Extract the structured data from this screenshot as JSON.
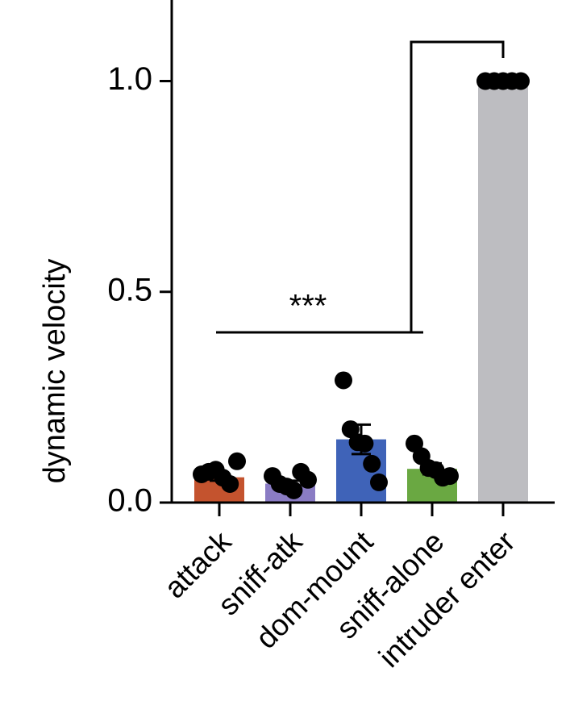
{
  "chart_data": {
    "type": "bar",
    "y_label": "dynamic velocity",
    "annotation": "***",
    "categories": [
      "attack",
      "sniff-atk",
      "dom-mount",
      "sniff-alone",
      "intruder enter"
    ],
    "values": [
      0.06,
      0.045,
      0.15,
      0.08,
      1.0
    ],
    "errors": [
      0.008,
      0.007,
      0.035,
      0.013,
      0
    ],
    "points": [
      [
        0.067,
        0.073,
        0.078,
        0.059,
        0.044,
        0.098
      ],
      [
        0.063,
        0.044,
        0.038,
        0.029,
        0.073,
        0.054
      ],
      [
        0.29,
        0.174,
        0.143,
        0.14,
        0.092,
        0.048
      ],
      [
        0.14,
        0.11,
        0.082,
        0.077,
        0.059,
        0.063
      ],
      [
        1.0,
        1.0,
        1.0,
        1.0,
        1.0
      ]
    ],
    "colors": [
      "#c4532e",
      "#8a7cc4",
      "#3f63b8",
      "#6aa842",
      "#bdbdc1"
    ],
    "label_colors": [
      "#a42a3c",
      "#000000",
      "#3e66c2",
      "#5ba443",
      "#000000"
    ],
    "ylim": [
      0,
      1.2
    ],
    "yticks": [
      {
        "value": 0,
        "label": "0.0"
      },
      {
        "value": 0.5,
        "label": "0.5"
      },
      {
        "value": 1.0,
        "label": "1.0"
      }
    ]
  }
}
